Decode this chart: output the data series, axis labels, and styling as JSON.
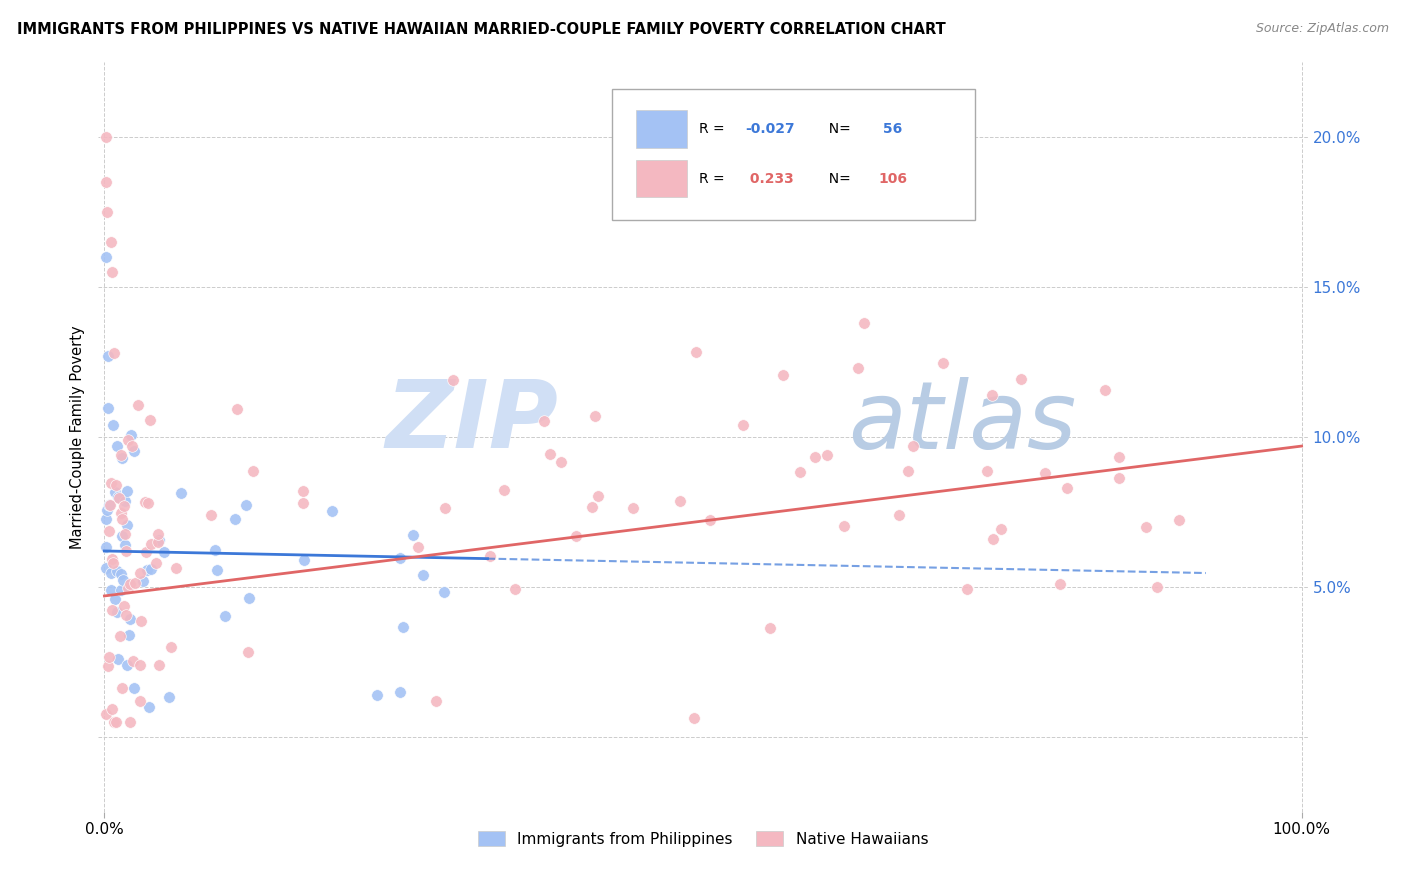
{
  "title": "IMMIGRANTS FROM PHILIPPINES VS NATIVE HAWAIIAN MARRIED-COUPLE FAMILY POVERTY CORRELATION CHART",
  "source": "Source: ZipAtlas.com",
  "ylabel": "Married-Couple Family Poverty",
  "blue_R": -0.027,
  "blue_N": 56,
  "pink_R": 0.233,
  "pink_N": 106,
  "blue_color": "#a4c2f4",
  "pink_color": "#f4b8c1",
  "blue_line_color": "#3c78d8",
  "pink_line_color": "#e06666",
  "blue_text_color": "#3c78d8",
  "pink_text_color": "#e06666",
  "right_axis_color": "#3c78d8",
  "watermark_color": "#d0dff5",
  "watermark_color2": "#b8cce4",
  "legend_label_blue": "Immigrants from Philippines",
  "legend_label_pink": "Native Hawaiians",
  "xlim": [
    -0.005,
    1.005
  ],
  "ylim": [
    -0.025,
    0.225
  ],
  "yticks": [
    0.0,
    0.05,
    0.1,
    0.15,
    0.2
  ],
  "yticklabels_right": [
    "",
    "5.0%",
    "10.0%",
    "15.0%",
    "20.0%"
  ],
  "xtick_left": "0.0%",
  "xtick_right": "100.0%"
}
